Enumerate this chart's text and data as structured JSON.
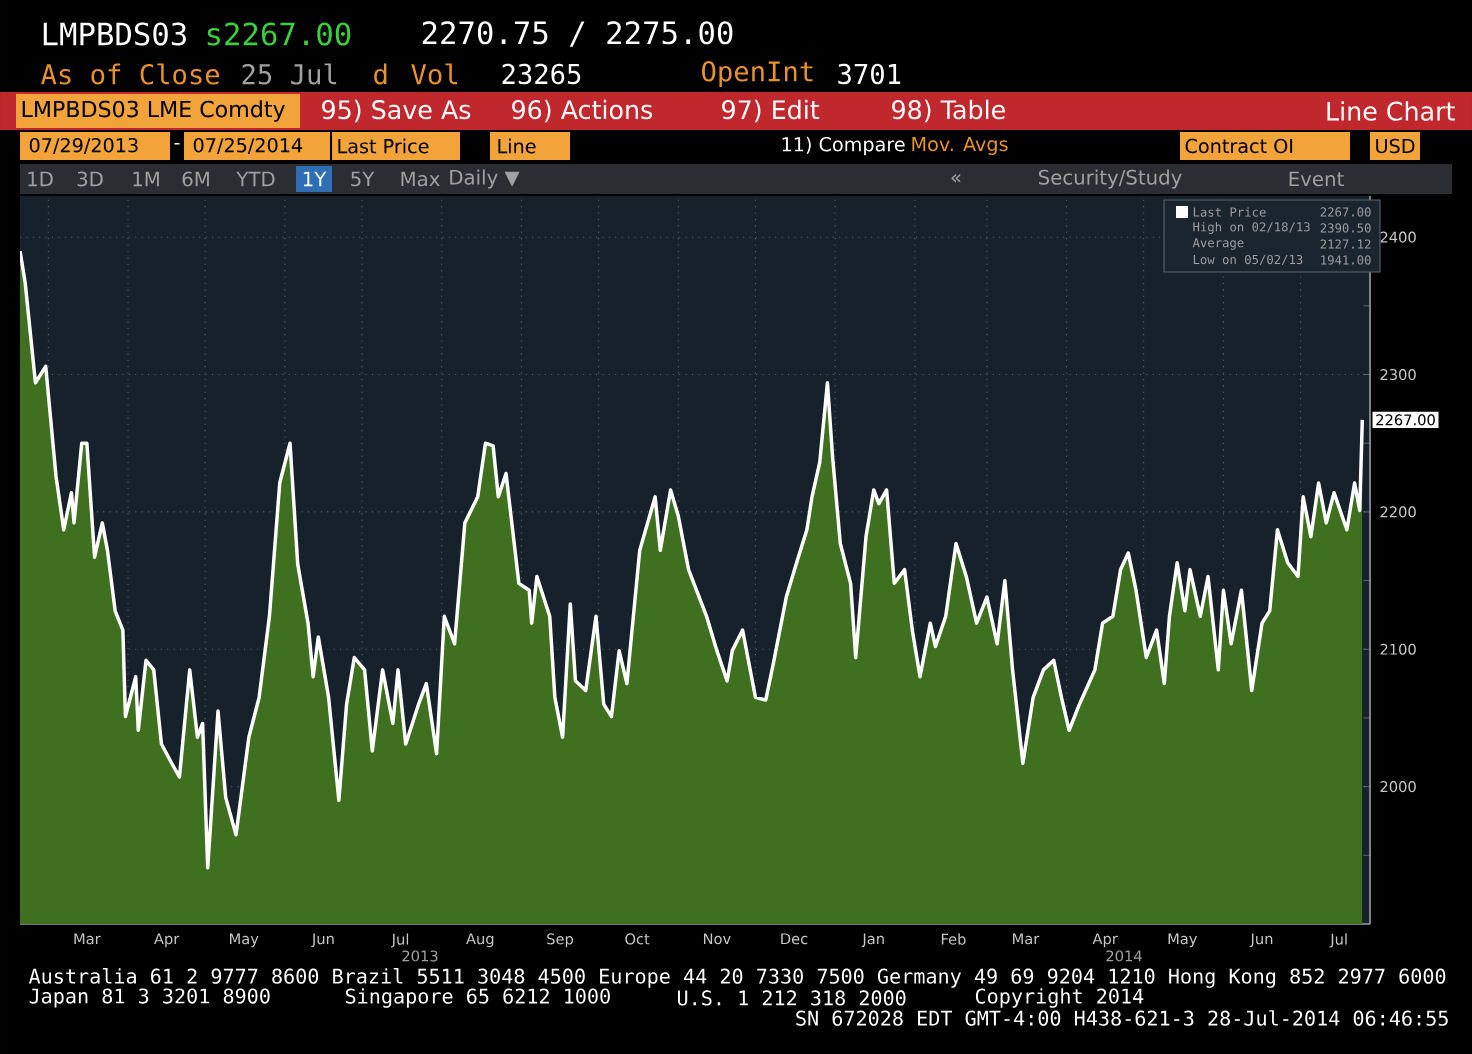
{
  "chart_data": {
    "type": "area",
    "title": "LMPBDS03",
    "series": [
      {
        "name": "Last Price",
        "color": "#3f7020",
        "x": [
          "2013-02-18",
          "2013-02-20",
          "2013-02-24",
          "2013-02-28",
          "2013-03-04",
          "2013-03-07",
          "2013-03-10",
          "2013-03-11",
          "2013-03-14",
          "2013-03-16",
          "2013-03-19",
          "2013-03-22",
          "2013-03-24",
          "2013-03-27",
          "2013-03-30",
          "2013-03-31",
          "2013-04-04",
          "2013-04-05",
          "2013-04-08",
          "2013-04-11",
          "2013-04-14",
          "2013-04-18",
          "2013-04-21",
          "2013-04-25",
          "2013-04-28",
          "2013-04-30",
          "2013-05-02",
          "2013-05-06",
          "2013-05-09",
          "2013-05-13",
          "2013-05-18",
          "2013-05-22",
          "2013-05-26",
          "2013-05-30",
          "2013-06-03",
          "2013-06-06",
          "2013-06-10",
          "2013-06-12",
          "2013-06-14",
          "2013-06-18",
          "2013-06-22",
          "2013-06-25",
          "2013-06-28",
          "2013-07-02",
          "2013-07-05",
          "2013-07-09",
          "2013-07-13",
          "2013-07-15",
          "2013-07-18",
          "2013-07-23",
          "2013-07-26",
          "2013-07-30",
          "2013-08-02",
          "2013-08-06",
          "2013-08-10",
          "2013-08-15",
          "2013-08-18",
          "2013-08-21",
          "2013-08-23",
          "2013-08-26",
          "2013-08-31",
          "2013-09-04",
          "2013-09-05",
          "2013-09-07",
          "2013-09-12",
          "2013-09-14",
          "2013-09-17",
          "2013-09-20",
          "2013-09-22",
          "2013-09-26",
          "2013-09-30",
          "2013-10-03",
          "2013-10-06",
          "2013-10-09",
          "2013-10-12",
          "2013-10-17",
          "2013-10-23",
          "2013-10-25",
          "2013-10-29",
          "2013-11-01",
          "2013-11-05",
          "2013-11-12",
          "2013-11-16",
          "2013-11-20",
          "2013-11-22",
          "2013-11-26",
          "2013-12-01",
          "2013-12-05",
          "2013-12-08",
          "2013-12-13",
          "2013-12-17",
          "2013-12-21",
          "2013-12-23",
          "2013-12-26",
          "2013-12-29",
          "2013-12-31",
          "2014-01-03",
          "2014-01-07",
          "2014-01-09",
          "2014-01-13",
          "2014-01-16",
          "2014-01-18",
          "2014-01-21",
          "2014-01-24",
          "2014-01-28",
          "2014-01-31",
          "2014-02-03",
          "2014-02-07",
          "2014-02-09",
          "2014-02-13",
          "2014-02-17",
          "2014-02-21",
          "2014-02-25",
          "2014-03-01",
          "2014-03-05",
          "2014-03-08",
          "2014-03-11",
          "2014-03-15",
          "2014-03-19",
          "2014-03-23",
          "2014-03-27",
          "2014-03-30",
          "2014-04-02",
          "2014-04-06",
          "2014-04-12",
          "2014-04-15",
          "2014-04-19",
          "2014-04-22",
          "2014-04-25",
          "2014-04-28",
          "2014-05-02",
          "2014-05-06",
          "2014-05-09",
          "2014-05-11",
          "2014-05-14",
          "2014-05-17",
          "2014-05-19",
          "2014-05-23",
          "2014-05-26",
          "2014-05-30",
          "2014-06-01",
          "2014-06-04",
          "2014-06-08",
          "2014-06-12",
          "2014-06-16",
          "2014-06-19",
          "2014-06-22",
          "2014-06-26",
          "2014-06-30",
          "2014-07-02",
          "2014-07-05",
          "2014-07-08",
          "2014-07-11",
          "2014-07-14",
          "2014-07-19",
          "2014-07-22",
          "2014-07-24",
          "2014-07-25"
        ],
        "values": [
          2390,
          2367,
          2294,
          2306,
          2226,
          2187,
          2214,
          2192,
          2250,
          2250,
          2167,
          2192,
          2172,
          2128,
          2114,
          2051,
          2080,
          2041,
          2092,
          2085,
          2031,
          2017,
          2007,
          2085,
          2036,
          2046,
          1941,
          2055,
          1992,
          1965,
          2036,
          2065,
          2124,
          2221,
          2250,
          2162,
          2119,
          2080,
          2109,
          2065,
          1990,
          2060,
          2094,
          2085,
          2026,
          2085,
          2046,
          2085,
          2031,
          2060,
          2075,
          2024,
          2124,
          2104,
          2192,
          2211,
          2250,
          2248,
          2211,
          2228,
          2148,
          2143,
          2119,
          2153,
          2124,
          2065,
          2036,
          2133,
          2077,
          2070,
          2124,
          2060,
          2051,
          2099,
          2075,
          2172,
          2211,
          2172,
          2216,
          2197,
          2158,
          2124,
          2099,
          2077,
          2099,
          2114,
          2065,
          2063,
          2090,
          2138,
          2163,
          2187,
          2211,
          2236,
          2294,
          2240,
          2177,
          2148,
          2094,
          2182,
          2216,
          2206,
          2216,
          2148,
          2158,
          2114,
          2080,
          2119,
          2102,
          2124,
          2177,
          2153,
          2119,
          2138,
          2104,
          2150,
          2085,
          2017,
          2065,
          2085,
          2092,
          2065,
          2041,
          2060,
          2085,
          2119,
          2124,
          2158,
          2170,
          2143,
          2094,
          2114,
          2075,
          2124,
          2163,
          2128,
          2158,
          2124,
          2153,
          2085,
          2143,
          2104,
          2143,
          2070,
          2119,
          2128,
          2187,
          2163,
          2153,
          2211,
          2182,
          2221,
          2192,
          2214,
          2187,
          2221,
          2201,
          2267
        ]
      }
    ],
    "xlim": [
      "2013-02-18",
      "2014-07-28"
    ],
    "xticks": [
      {
        "value": "2013-03-01",
        "label": null
      },
      {
        "value": "2013-04-01",
        "label": null
      },
      {
        "value": "2013-05-01",
        "label": null
      },
      {
        "value": "2013-06-01",
        "label": null
      },
      {
        "value": "2013-07-01",
        "label": null
      },
      {
        "value": "2013-08-01",
        "label": null
      },
      {
        "value": "2013-09-01",
        "label": null
      },
      {
        "value": "2013-10-01",
        "label": null
      },
      {
        "value": "2013-11-01",
        "label": null
      },
      {
        "value": "2013-12-01",
        "label": null
      },
      {
        "value": "2014-01-01",
        "label": null
      },
      {
        "value": "2014-02-01",
        "label": null
      },
      {
        "value": "2014-03-01",
        "label": null
      },
      {
        "value": "2014-04-01",
        "label": null
      },
      {
        "value": "2014-05-01",
        "label": null
      },
      {
        "value": "2014-06-01",
        "label": null
      },
      {
        "value": "2014-07-01",
        "label": null
      },
      {
        "value": "2013-03-16",
        "label": "Mar"
      },
      {
        "value": "2013-04-16",
        "label": "Apr"
      },
      {
        "value": "2013-05-16",
        "label": "May"
      },
      {
        "value": "2013-06-16",
        "label": "Jun"
      },
      {
        "value": "2013-07-16",
        "label": "Jul"
      },
      {
        "value": "2013-08-16",
        "label": "Aug"
      },
      {
        "value": "2013-09-16",
        "label": "Sep"
      },
      {
        "value": "2013-10-16",
        "label": "Oct"
      },
      {
        "value": "2013-11-16",
        "label": "Nov"
      },
      {
        "value": "2013-12-16",
        "label": "Dec"
      },
      {
        "value": "2014-01-16",
        "label": "Jan"
      },
      {
        "value": "2014-02-16",
        "label": "Feb"
      },
      {
        "value": "2014-03-16",
        "label": "Mar"
      },
      {
        "value": "2014-04-16",
        "label": "Apr"
      },
      {
        "value": "2014-05-16",
        "label": "May"
      },
      {
        "value": "2014-06-16",
        "label": "Jun"
      },
      {
        "value": "2014-07-16",
        "label": "Jul"
      }
    ],
    "ylim": [
      1900,
      2430
    ],
    "yticks": [
      {
        "value": 1950,
        "label": null
      },
      2000,
      {
        "value": 2050,
        "label": null
      },
      2100,
      {
        "value": 2150,
        "label": null
      },
      2200,
      {
        "value": 2250,
        "label": null
      },
      2300,
      {
        "value": 2350,
        "label": null
      },
      2400
    ],
    "grid": true,
    "legend": "top right",
    "annotations": [
      "s2267.00",
      "2270.75 / 2275.00",
      "As of Close",
      "25 Jul",
      "d",
      "Vol",
      "23265",
      "OpenInt",
      "3701",
      "LMPBDS03 LME Comdty",
      "95) Save As",
      "96) Actions",
      "97) Edit",
      "98) Table",
      "Line Chart",
      "07/29/2013",
      "-",
      "07/25/2014",
      "Last Price",
      "Line",
      "11) Compare",
      "Mov. Avgs",
      "Contract OI",
      "USD",
      "1D",
      "3D",
      "1M",
      "6M",
      "YTD",
      "1Y",
      "5Y",
      "Max",
      "Daily ▼",
      "«",
      "Security/Study",
      "Event",
      "2267.00",
      "High on 02/18/13",
      "2390.50",
      "Average",
      "2127.12",
      "Low on 05/02/13",
      "1941.00",
      "2013",
      "2014",
      "Australia 61 2 9777 8600 Brazil 5511 3048 4500 Europe 44 20 7330 7500 Germany 49 69 9204 1210 Hong Kong 852 2977 6000",
      "Japan 81 3 3201 8900",
      "Singapore 65 6212 1000",
      "U.S. 1 212 318 2000",
      "Copyright 2014",
      "SN 672028 EDT  GMT-4:00 H438-621-3 28-Jul-2014 06:46:55",
      {
        "text": "2267.00",
        "x": "2014-07-25",
        "y": 2267
      }
    ]
  }
}
